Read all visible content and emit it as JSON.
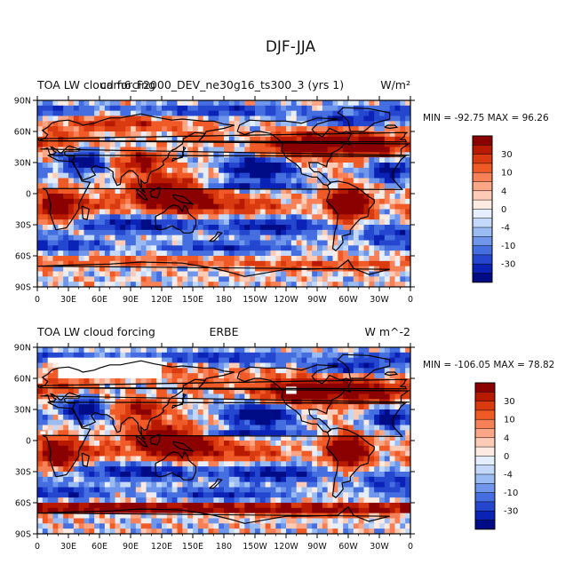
{
  "figure": {
    "title": "DJF-JJA"
  },
  "chart_data": [
    {
      "type": "heatmap",
      "title_left": "TOA LW cloud forcing",
      "title_center": "cam6_F2000_DEV_ne30g16_ts300_3 (yrs 1)",
      "title_right": "W/m²",
      "stats": "MIN = -92.75   MAX =  96.26",
      "x_tick_labels": [
        "0",
        "30E",
        "60E",
        "90E",
        "120E",
        "150E",
        "180",
        "150W",
        "120W",
        "90W",
        "60W",
        "30W",
        "0"
      ],
      "y_tick_labels": [
        "90N",
        "60N",
        "30N",
        "0",
        "30S",
        "60S",
        "90S"
      ],
      "xlim": [
        0,
        360
      ],
      "ylim": [
        -90,
        90
      ],
      "colorbar_labels": [
        "30",
        "10",
        "4",
        "0",
        "-4",
        "-10",
        "-30"
      ],
      "data_missing_regions": []
    },
    {
      "type": "heatmap",
      "title_left": "TOA LW cloud forcing",
      "title_center": "ERBE",
      "title_right": "W m^-2",
      "stats": "MIN = -106.05  MAX =  78.82",
      "x_tick_labels": [
        "0",
        "30E",
        "60E",
        "90E",
        "120E",
        "150E",
        "180",
        "150W",
        "120W",
        "90W",
        "60W",
        "30W",
        "0"
      ],
      "y_tick_labels": [
        "90N",
        "60N",
        "30N",
        "0",
        "30S",
        "60S",
        "90S"
      ],
      "xlim": [
        0,
        360
      ],
      "ylim": [
        -90,
        90
      ],
      "colorbar_labels": [
        "30",
        "10",
        "4",
        "0",
        "-4",
        "-10",
        "-30"
      ],
      "data_missing_regions": [
        [
          20,
          120,
          60,
          80
        ],
        [
          10,
          40,
          75,
          80
        ],
        [
          100,
          125,
          72,
          76
        ],
        [
          240,
          250,
          45,
          52
        ],
        [
          3,
          8,
          6,
          9
        ]
      ]
    }
  ],
  "colorbar": {
    "colors": [
      "#8b0000",
      "#b81a00",
      "#d93a10",
      "#ef5a26",
      "#f88056",
      "#fba687",
      "#fdcbb6",
      "#fdebe2",
      "#e4eefc",
      "#c4d9f9",
      "#9bbcf3",
      "#6f96ea",
      "#456fe0",
      "#2546cf",
      "#0a22b5",
      "#000c86"
    ]
  }
}
